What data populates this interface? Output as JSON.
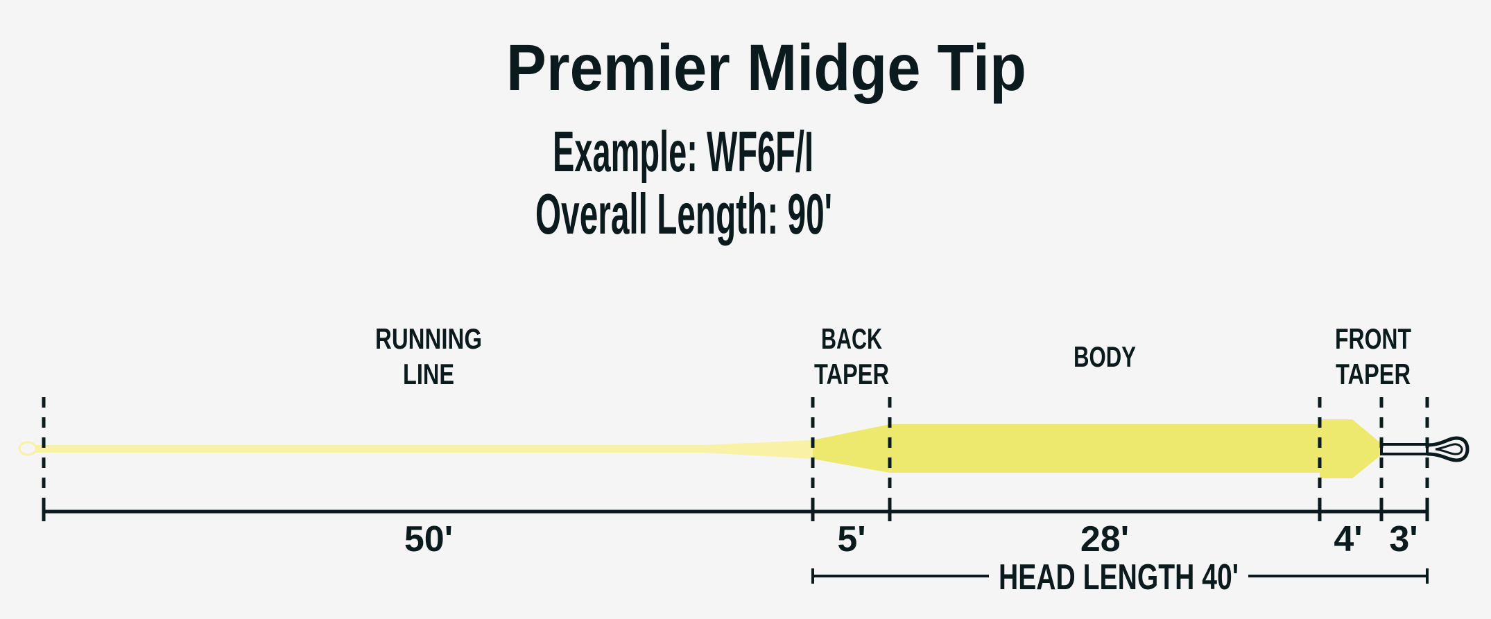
{
  "title": "Premier Midge Tip",
  "subtitle": "Example: WF6F/I",
  "overall_length": "Overall Length: 90'",
  "colors": {
    "ink": "#0b1a1c",
    "head": "#ede86e",
    "running_line": "#f8f1a6",
    "background": "#f5f5f5"
  },
  "sections": {
    "running_line": {
      "label_1": "RUNNING",
      "label_2": "LINE",
      "length": "50'"
    },
    "back_taper": {
      "label_1": "BACK",
      "label_2": "TAPER",
      "length": "5'"
    },
    "body": {
      "label": "BODY",
      "length": "28'"
    },
    "front_taper": {
      "label_1": "FRONT",
      "label_2": "TAPER",
      "length": "4'"
    },
    "tip": {
      "length": "3'"
    }
  },
  "head_length": "HEAD LENGTH 40'"
}
